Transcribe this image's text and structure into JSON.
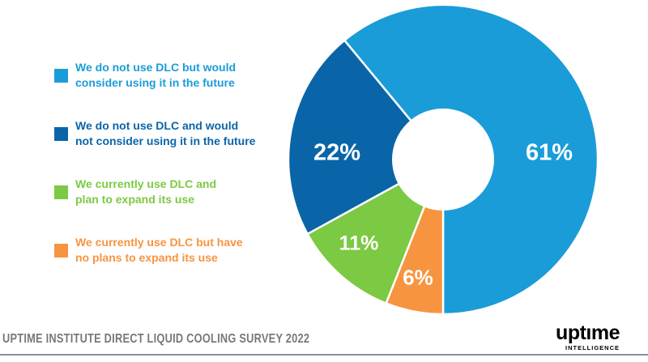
{
  "page": {
    "background": "#FFFFFF"
  },
  "legend": {
    "items": [
      {
        "lines": [
          "We do not use DLC but would",
          "consider using it in the future"
        ],
        "color": "#1A9CD8"
      },
      {
        "lines": [
          "We do not use DLC and would",
          "not consider using it in the future"
        ],
        "color": "#0A65A8"
      },
      {
        "lines": [
          "We currently use DLC and",
          "plan to expand its use"
        ],
        "color": "#7CC943"
      },
      {
        "lines": [
          "We currently use DLC but have",
          "no plans to expand its use"
        ],
        "color": "#F79440"
      }
    ]
  },
  "chart_data": {
    "type": "pie",
    "donut": true,
    "title": "",
    "legend_position": "left",
    "start_angle_deg_from_top": 180,
    "slices": [
      {
        "category": "We do not use DLC but would consider using it in the future",
        "value": 61,
        "label": "61%",
        "color": "#1A9CD8"
      },
      {
        "category": "We do not use DLC and would not consider using it in the future",
        "value": 22,
        "label": "22%",
        "color": "#0A65A8"
      },
      {
        "category": "We currently use DLC and plan to expand its use",
        "value": 11,
        "label": "11%",
        "color": "#7CC943"
      },
      {
        "category": "We currently use DLC but have no plans to expand its use",
        "value": 6,
        "label": "6%",
        "color": "#F79440"
      }
    ]
  },
  "footer": {
    "caption": "UPTIME INSTITUTE DIRECT LIQUID COOLING SURVEY 2022"
  },
  "logo": {
    "wordmark": "uptıme",
    "tagline": "INTELLIGENCE",
    "wordmark_color": "#12406B",
    "tagline_color": "#2BA9E0"
  }
}
